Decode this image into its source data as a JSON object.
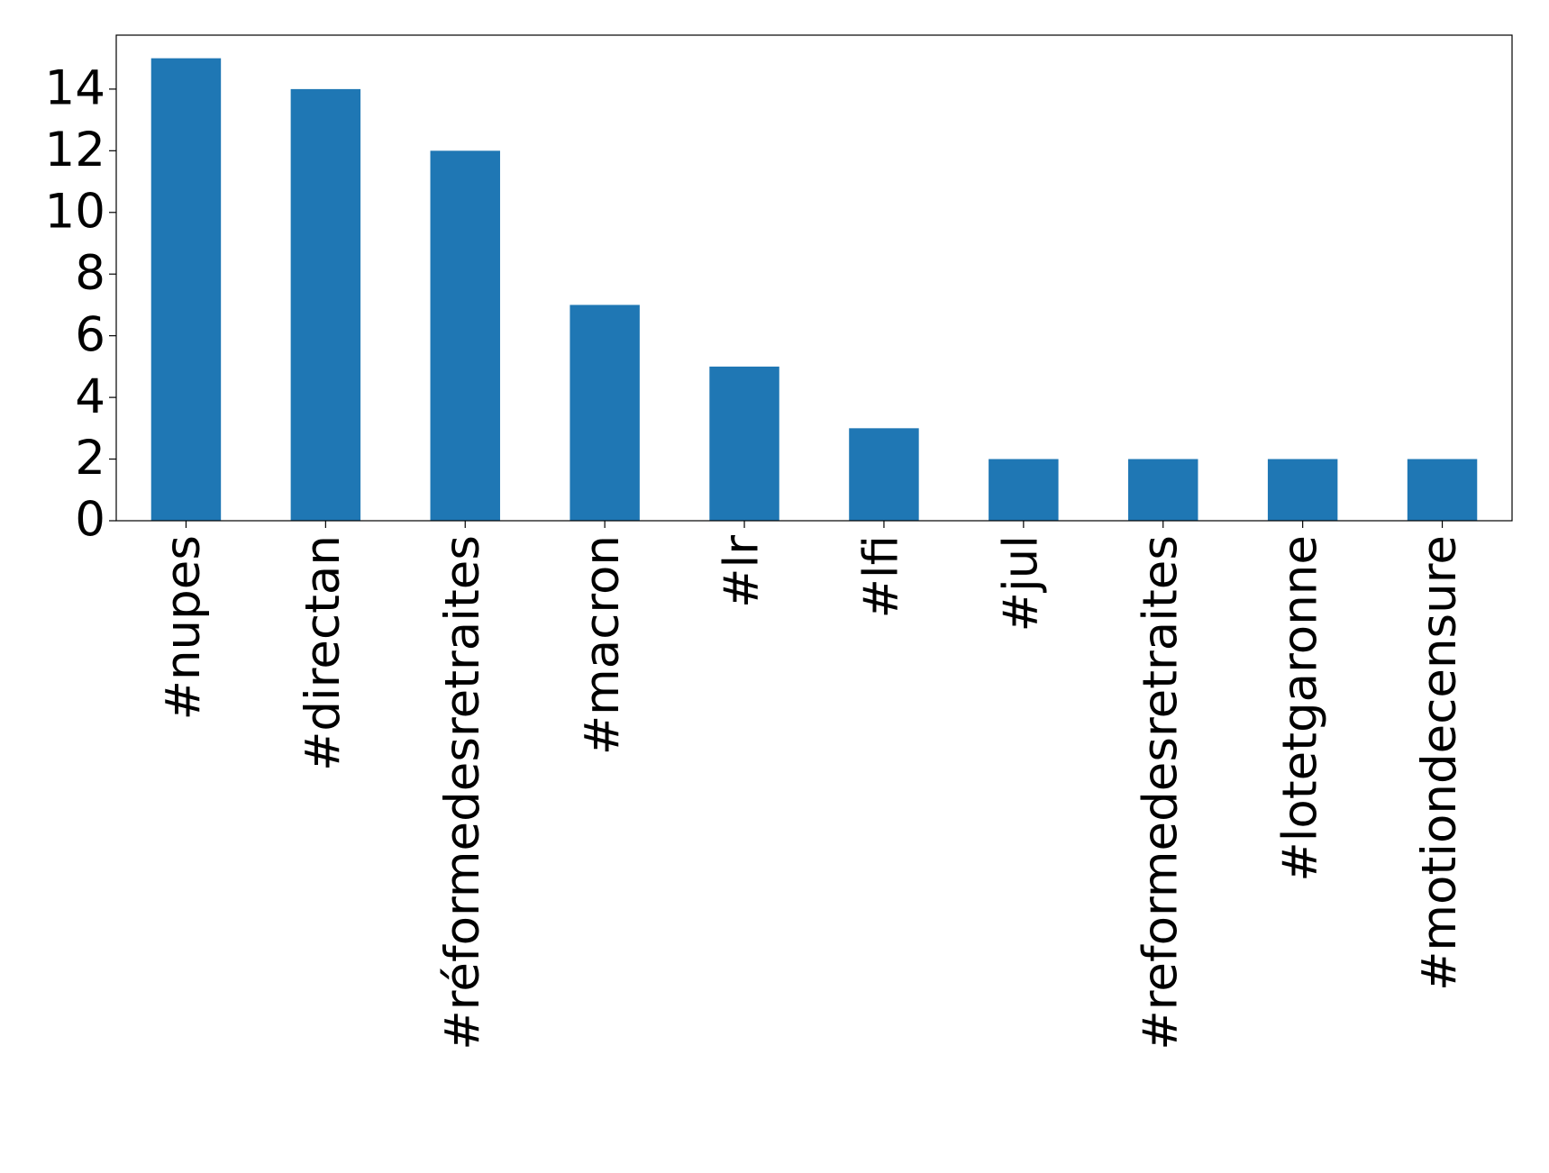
{
  "chart_data": {
    "type": "bar",
    "categories": [
      "#nupes",
      "#directan",
      "#réformedesretraites",
      "#macron",
      "#lr",
      "#lfi",
      "#jul",
      "#reformedesretraites",
      "#lotetgaronne",
      "#motiondecensure"
    ],
    "values": [
      15,
      14,
      12,
      7,
      5,
      3,
      2,
      2,
      2,
      2
    ],
    "color": "#1f77b4",
    "ylim": [
      0,
      15.75
    ],
    "yticks": [
      0,
      2,
      4,
      6,
      8,
      10,
      12,
      14
    ],
    "grid": false
  }
}
